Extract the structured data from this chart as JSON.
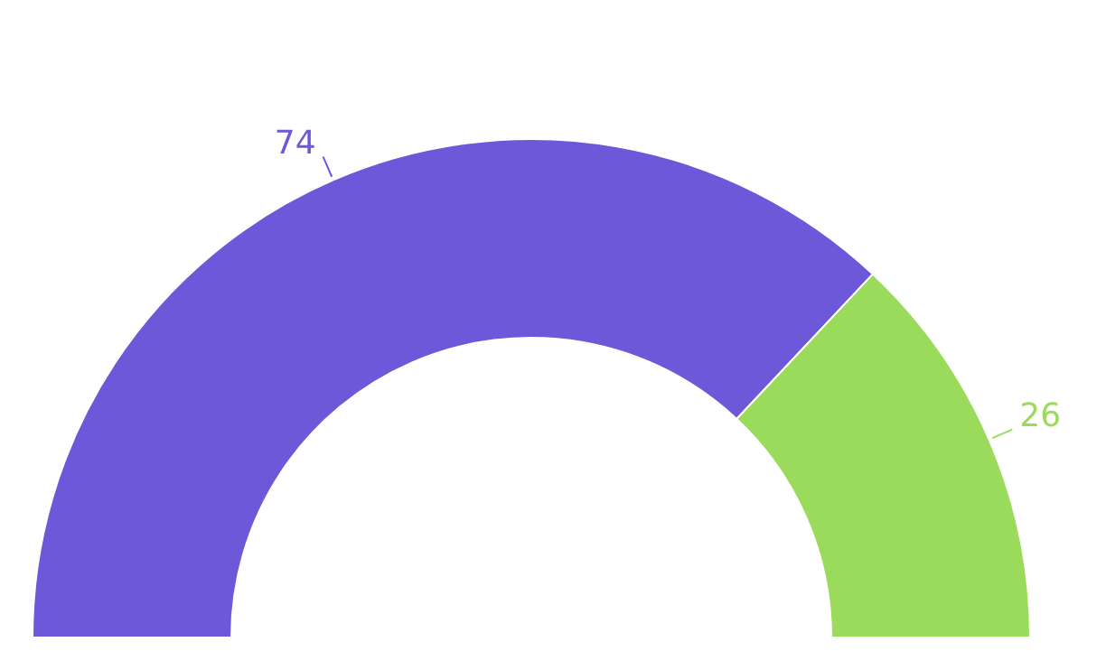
{
  "chart_data": {
    "type": "donut",
    "categories": [
      null,
      null
    ],
    "values": [
      74,
      26
    ],
    "colors": [
      "#6c58d8",
      "#9bdb5b"
    ],
    "data_labels": true
  }
}
